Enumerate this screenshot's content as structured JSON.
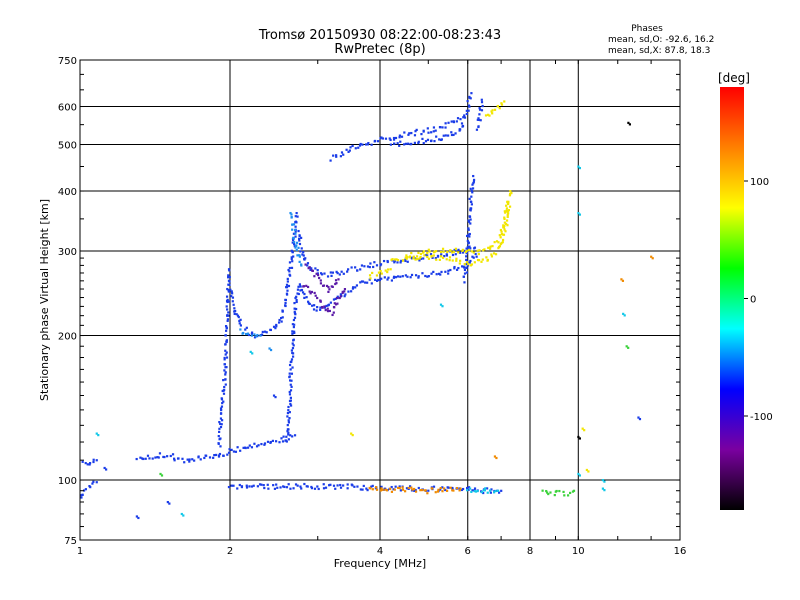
{
  "chart_data": {
    "type": "scatter",
    "title": "Tromsø 20150930 08:22:00-08:23:43",
    "subtitle": "RwPretec (8p)",
    "xlabel": "Frequency [MHz]",
    "ylabel": "Stationary phase Virtual Height [km]",
    "x_scale": "log",
    "y_scale": "log",
    "xlim": [
      1,
      16
    ],
    "ylim": [
      75,
      750
    ],
    "x_ticks": [
      1,
      2,
      4,
      6,
      8,
      10,
      16
    ],
    "y_ticks": [
      75,
      100,
      200,
      300,
      400,
      500,
      600,
      750
    ],
    "grid": true,
    "phase_legend": {
      "title": "Phases",
      "line_o": "mean, sd,O: -92.6, 16.2",
      "line_x": "mean, sd,X:  87.8, 18.3"
    },
    "colorbar": {
      "label": "[deg]",
      "range": [
        -180,
        180
      ],
      "ticks": [
        100,
        0,
        -100
      ],
      "colors": [
        "#000000",
        "#7a00a0",
        "#0000ff",
        "#00ffff",
        "#00ff00",
        "#ffff00",
        "#ff8000",
        "#ff0000"
      ]
    },
    "series": [
      {
        "phase_deg": -100,
        "color": "#1a3ce8",
        "traces": [
          [
            [
              1.0,
              92
            ],
            [
              1.02,
              95
            ],
            [
              1.05,
              97
            ],
            [
              1.08,
              99
            ]
          ],
          [
            [
              1.0,
              108
            ],
            [
              1.04,
              109
            ],
            [
              1.08,
              110
            ]
          ],
          [
            [
              1.3,
              110
            ],
            [
              1.4,
              112
            ],
            [
              1.5,
              113
            ],
            [
              1.6,
              110
            ],
            [
              1.7,
              111
            ],
            [
              1.8,
              112
            ],
            [
              1.9,
              112
            ]
          ],
          [
            [
              1.9,
              112
            ],
            [
              2.0,
              115
            ],
            [
              2.2,
              118
            ],
            [
              2.4,
              120
            ],
            [
              2.6,
              122
            ],
            [
              2.7,
              124
            ]
          ],
          [
            [
              1.9,
              118
            ],
            [
              1.92,
              135
            ],
            [
              1.95,
              160
            ],
            [
              1.97,
              200
            ],
            [
              1.98,
              240
            ],
            [
              1.99,
              275
            ]
          ],
          [
            [
              2.0,
              250
            ],
            [
              2.05,
              225
            ],
            [
              2.1,
              210
            ],
            [
              2.2,
              201
            ],
            [
              2.3,
              200
            ],
            [
              2.45,
              205
            ],
            [
              2.55,
              220
            ],
            [
              2.62,
              260
            ],
            [
              2.7,
              330
            ],
            [
              2.72,
              360
            ]
          ],
          [
            [
              2.6,
              120
            ],
            [
              2.63,
              140
            ],
            [
              2.65,
              170
            ],
            [
              2.67,
              200
            ],
            [
              2.7,
              230
            ],
            [
              2.75,
              255
            ],
            [
              2.85,
              240
            ],
            [
              3.0,
              225
            ],
            [
              3.3,
              240
            ],
            [
              3.6,
              255
            ],
            [
              4.0,
              262
            ],
            [
              4.5,
              265
            ],
            [
              5.0,
              268
            ],
            [
              5.5,
              272
            ],
            [
              6.0,
              280
            ],
            [
              6.3,
              300
            ]
          ],
          [
            [
              2.75,
              330
            ],
            [
              2.8,
              290
            ],
            [
              2.9,
              275
            ],
            [
              3.1,
              268
            ],
            [
              3.4,
              272
            ],
            [
              3.8,
              280
            ],
            [
              4.3,
              285
            ],
            [
              4.8,
              290
            ],
            [
              5.3,
              295
            ],
            [
              5.8,
              300
            ],
            [
              6.2,
              305
            ]
          ],
          [
            [
              3.2,
              468
            ],
            [
              3.5,
              490
            ],
            [
              4.0,
              510
            ],
            [
              4.5,
              525
            ],
            [
              5.0,
              535
            ],
            [
              5.5,
              550
            ],
            [
              5.8,
              565
            ]
          ],
          [
            [
              4.2,
              500
            ],
            [
              4.6,
              505
            ],
            [
              5.0,
              510
            ],
            [
              5.4,
              520
            ],
            [
              5.8,
              535
            ],
            [
              6.0,
              600
            ],
            [
              6.1,
              640
            ]
          ],
          [
            [
              5.9,
              260
            ],
            [
              6.0,
              300
            ],
            [
              6.05,
              350
            ],
            [
              6.1,
              400
            ],
            [
              6.15,
              430
            ]
          ],
          [
            [
              6.3,
              540
            ],
            [
              6.35,
              580
            ],
            [
              6.4,
              620
            ]
          ]
        ]
      },
      {
        "phase_deg": -130,
        "color": "#5a1aa8",
        "traces": [
          [
            [
              2.8,
              255
            ],
            [
              3.0,
              240
            ],
            [
              3.1,
              226
            ],
            [
              3.2,
              222
            ],
            [
              3.3,
              238
            ],
            [
              3.4,
              250
            ]
          ],
          [
            [
              2.85,
              280
            ],
            [
              3.0,
              265
            ],
            [
              3.15,
              248
            ],
            [
              3.3,
              262
            ]
          ]
        ]
      },
      {
        "phase_deg": -70,
        "color": "#1e8ef0",
        "traces": [
          [
            [
              2.65,
              360
            ],
            [
              2.7,
              320
            ],
            [
              2.75,
              290
            ],
            [
              2.78,
              280
            ]
          ],
          [
            [
              2.1,
              205
            ],
            [
              2.2,
              200
            ],
            [
              2.3,
              200
            ]
          ]
        ]
      },
      {
        "phase_deg": 100,
        "color": "#f2e600",
        "traces": [
          [
            [
              4.2,
              285
            ],
            [
              4.6,
              290
            ],
            [
              5.0,
              292
            ],
            [
              5.5,
              290
            ],
            [
              6.0,
              283
            ],
            [
              6.4,
              285
            ],
            [
              6.8,
              295
            ],
            [
              7.0,
              310
            ],
            [
              7.2,
              350
            ],
            [
              7.3,
              400
            ]
          ],
          [
            [
              4.5,
              292
            ],
            [
              5.0,
              300
            ],
            [
              5.5,
              302
            ],
            [
              6.0,
              298
            ],
            [
              6.5,
              300
            ],
            [
              7.0,
              320
            ],
            [
              7.2,
              380
            ]
          ],
          [
            [
              6.5,
              570
            ],
            [
              6.8,
              590
            ],
            [
              7.1,
              615
            ]
          ],
          [
            [
              3.8,
              265
            ],
            [
              4.0,
              270
            ],
            [
              4.2,
              275
            ]
          ]
        ]
      },
      {
        "phase_deg": -100,
        "color": "#1a3ce8",
        "traces": [
          [
            [
              2.0,
              97
            ],
            [
              2.5,
              97
            ],
            [
              3.0,
              97
            ],
            [
              3.5,
              97
            ],
            [
              4.0,
              96
            ],
            [
              4.5,
              96
            ],
            [
              5.0,
              96
            ],
            [
              5.5,
              96
            ],
            [
              6.0,
              96
            ],
            [
              6.5,
              95
            ],
            [
              7.0,
              95
            ]
          ]
        ]
      },
      {
        "phase_deg": 150,
        "color": "#f08a00",
        "traces": [
          [
            [
              3.8,
              96
            ],
            [
              4.2,
              95
            ],
            [
              4.6,
              96
            ],
            [
              5.0,
              95
            ],
            [
              5.4,
              96
            ],
            [
              5.8,
              96
            ]
          ]
        ]
      },
      {
        "phase_deg": 40,
        "color": "#3ad23a",
        "traces": [
          [
            [
              8.5,
              95
            ],
            [
              9.0,
              94
            ],
            [
              9.5,
              94
            ],
            [
              9.8,
              95
            ]
          ]
        ]
      },
      {
        "phase_deg": -20,
        "color": "#12c8e8",
        "traces": [
          [
            [
              6.0,
              95
            ],
            [
              6.3,
              95
            ],
            [
              6.6,
              95
            ],
            [
              6.9,
              95
            ]
          ]
        ]
      }
    ],
    "isolated_points": [
      {
        "x": 1.08,
        "y": 125,
        "color": "#12c8e8"
      },
      {
        "x": 1.12,
        "y": 106,
        "color": "#1a3ce8"
      },
      {
        "x": 1.3,
        "y": 84,
        "color": "#1a3ce8"
      },
      {
        "x": 1.45,
        "y": 103,
        "color": "#3ad23a"
      },
      {
        "x": 1.5,
        "y": 90,
        "color": "#1a3ce8"
      },
      {
        "x": 1.6,
        "y": 85,
        "color": "#12c8e8"
      },
      {
        "x": 2.2,
        "y": 185,
        "color": "#12c8e8"
      },
      {
        "x": 2.4,
        "y": 188,
        "color": "#1e8ef0"
      },
      {
        "x": 2.45,
        "y": 150,
        "color": "#1a3ce8"
      },
      {
        "x": 3.5,
        "y": 125,
        "color": "#f2e600"
      },
      {
        "x": 5.3,
        "y": 232,
        "color": "#12c8e8"
      },
      {
        "x": 6.8,
        "y": 112,
        "color": "#f08a00"
      },
      {
        "x": 10.0,
        "y": 450,
        "color": "#12c8e8"
      },
      {
        "x": 10.0,
        "y": 360,
        "color": "#12c8e8"
      },
      {
        "x": 10.0,
        "y": 123,
        "color": "#000000"
      },
      {
        "x": 10.0,
        "y": 103,
        "color": "#12c8e8"
      },
      {
        "x": 10.2,
        "y": 128,
        "color": "#f2e600"
      },
      {
        "x": 10.4,
        "y": 105,
        "color": "#f2e600"
      },
      {
        "x": 11.2,
        "y": 100,
        "color": "#12c8e8"
      },
      {
        "x": 11.2,
        "y": 96,
        "color": "#12c8e8"
      },
      {
        "x": 12.2,
        "y": 262,
        "color": "#f08a00"
      },
      {
        "x": 12.3,
        "y": 222,
        "color": "#12c8e8"
      },
      {
        "x": 12.5,
        "y": 190,
        "color": "#3ad23a"
      },
      {
        "x": 12.6,
        "y": 555,
        "color": "#000000"
      },
      {
        "x": 13.2,
        "y": 135,
        "color": "#1a3ce8"
      },
      {
        "x": 14.0,
        "y": 292,
        "color": "#f08a00"
      }
    ]
  }
}
